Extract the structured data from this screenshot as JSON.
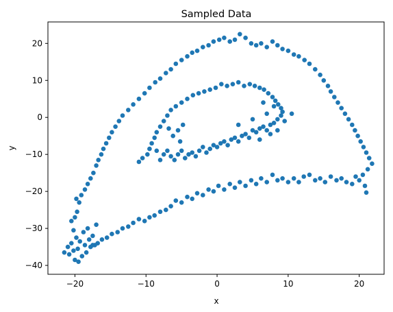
{
  "chart_data": {
    "type": "scatter",
    "title": "Sampled Data",
    "xlabel": "x",
    "ylabel": "y",
    "xlim": [
      -23.8,
      23.5
    ],
    "ylim": [
      -42.4,
      25.8
    ],
    "xticks": [
      -20,
      -10,
      0,
      10,
      20
    ],
    "yticks": [
      -40,
      -30,
      -20,
      -10,
      0,
      10,
      20
    ],
    "grid": false,
    "marker_color": "#1f77b4",
    "series": [
      {
        "name": "",
        "points": [
          [
            -21.5,
            -36.5
          ],
          [
            -21.0,
            -35.0
          ],
          [
            -20.8,
            -37.0
          ],
          [
            -20.5,
            -34.0
          ],
          [
            -20.2,
            -36.0
          ],
          [
            -20.0,
            -38.5
          ],
          [
            -19.8,
            -32.5
          ],
          [
            -19.6,
            -35.5
          ],
          [
            -19.5,
            -39.0
          ],
          [
            -19.3,
            -33.5
          ],
          [
            -19.0,
            -37.5
          ],
          [
            -18.8,
            -31.0
          ],
          [
            -18.6,
            -34.5
          ],
          [
            -18.4,
            -36.5
          ],
          [
            -18.2,
            -30.0
          ],
          [
            -18.0,
            -33.0
          ],
          [
            -17.8,
            -35.0
          ],
          [
            -17.5,
            -32.0
          ],
          [
            -17.2,
            -34.5
          ],
          [
            -17.0,
            -29.0
          ],
          [
            -20.2,
            -30.5
          ],
          [
            -20.5,
            -28.0
          ],
          [
            -20.0,
            -27.0
          ],
          [
            -19.7,
            -25.5
          ],
          [
            -19.4,
            -23.0
          ],
          [
            -19.8,
            -22.0
          ],
          [
            -19.1,
            -21.0
          ],
          [
            -18.6,
            -19.5
          ],
          [
            -18.2,
            -18.0
          ],
          [
            -17.8,
            -16.5
          ],
          [
            -17.4,
            -15.0
          ],
          [
            -17.0,
            -13.0
          ],
          [
            -16.7,
            -11.5
          ],
          [
            -16.3,
            -10.0
          ],
          [
            -16.0,
            -8.5
          ],
          [
            -15.6,
            -7.0
          ],
          [
            -15.2,
            -5.5
          ],
          [
            -14.8,
            -4.0
          ],
          [
            -14.3,
            -2.5
          ],
          [
            -13.8,
            -1.0
          ],
          [
            -13.3,
            0.5
          ],
          [
            -12.5,
            2.0
          ],
          [
            -11.8,
            3.5
          ],
          [
            -11.0,
            5.0
          ],
          [
            -10.2,
            6.5
          ],
          [
            -9.5,
            8.0
          ],
          [
            -8.7,
            9.5
          ],
          [
            -8.0,
            10.5
          ],
          [
            -7.2,
            12.0
          ],
          [
            -6.5,
            13.0
          ],
          [
            -5.8,
            14.5
          ],
          [
            -5.0,
            15.5
          ],
          [
            -4.2,
            16.5
          ],
          [
            -3.5,
            17.5
          ],
          [
            -2.8,
            18.0
          ],
          [
            -2.0,
            19.0
          ],
          [
            -1.2,
            19.5
          ],
          [
            -0.5,
            20.5
          ],
          [
            0.3,
            21.0
          ],
          [
            1.0,
            21.5
          ],
          [
            1.8,
            20.5
          ],
          [
            2.5,
            21.0
          ],
          [
            3.2,
            22.5
          ],
          [
            4.0,
            21.5
          ],
          [
            4.8,
            20.0
          ],
          [
            5.5,
            19.5
          ],
          [
            6.2,
            20.0
          ],
          [
            7.0,
            19.0
          ],
          [
            7.8,
            20.5
          ],
          [
            8.5,
            19.5
          ],
          [
            9.2,
            18.5
          ],
          [
            10.0,
            18.0
          ],
          [
            10.8,
            17.0
          ],
          [
            11.5,
            16.5
          ],
          [
            12.3,
            15.5
          ],
          [
            13.0,
            14.5
          ],
          [
            13.8,
            13.0
          ],
          [
            14.5,
            11.5
          ],
          [
            15.0,
            10.0
          ],
          [
            15.6,
            8.5
          ],
          [
            16.0,
            7.0
          ],
          [
            16.5,
            5.5
          ],
          [
            17.0,
            4.0
          ],
          [
            17.5,
            2.5
          ],
          [
            18.0,
            1.0
          ],
          [
            18.5,
            -0.5
          ],
          [
            19.0,
            -2.0
          ],
          [
            19.4,
            -3.5
          ],
          [
            19.8,
            -5.0
          ],
          [
            20.2,
            -6.5
          ],
          [
            20.6,
            -8.0
          ],
          [
            21.0,
            -9.5
          ],
          [
            21.4,
            -11.0
          ],
          [
            21.8,
            -12.5
          ],
          [
            21.2,
            -14.0
          ],
          [
            20.5,
            -15.5
          ],
          [
            20.0,
            -17.0
          ],
          [
            20.8,
            -18.5
          ],
          [
            19.5,
            -16.0
          ],
          [
            21.0,
            -20.3
          ],
          [
            19.0,
            -18.0
          ],
          [
            18.2,
            -17.5
          ],
          [
            17.5,
            -16.5
          ],
          [
            16.8,
            -17.0
          ],
          [
            16.0,
            -16.0
          ],
          [
            15.2,
            -17.5
          ],
          [
            14.5,
            -16.5
          ],
          [
            13.8,
            -17.0
          ],
          [
            13.0,
            -15.5
          ],
          [
            12.2,
            -16.0
          ],
          [
            11.5,
            -17.5
          ],
          [
            10.8,
            -16.5
          ],
          [
            10.0,
            -17.5
          ],
          [
            9.2,
            -16.5
          ],
          [
            8.5,
            -17.0
          ],
          [
            7.8,
            -15.5
          ],
          [
            7.0,
            -17.5
          ],
          [
            6.2,
            -16.5
          ],
          [
            5.5,
            -18.0
          ],
          [
            4.8,
            -17.0
          ],
          [
            4.0,
            -18.5
          ],
          [
            3.2,
            -17.5
          ],
          [
            2.5,
            -19.0
          ],
          [
            1.8,
            -18.0
          ],
          [
            1.0,
            -19.5
          ],
          [
            0.2,
            -18.5
          ],
          [
            -0.5,
            -20.0
          ],
          [
            -1.2,
            -19.5
          ],
          [
            -2.0,
            -21.0
          ],
          [
            -2.8,
            -20.5
          ],
          [
            -3.5,
            -22.0
          ],
          [
            -4.2,
            -21.5
          ],
          [
            -5.0,
            -23.0
          ],
          [
            -5.8,
            -22.5
          ],
          [
            -6.5,
            -24.0
          ],
          [
            -7.2,
            -25.0
          ],
          [
            -8.0,
            -25.5
          ],
          [
            -8.8,
            -26.5
          ],
          [
            -9.5,
            -27.0
          ],
          [
            -10.2,
            -28.0
          ],
          [
            -11.0,
            -27.5
          ],
          [
            -11.8,
            -28.5
          ],
          [
            -12.5,
            -29.5
          ],
          [
            -13.3,
            -30.0
          ],
          [
            -14.0,
            -31.0
          ],
          [
            -14.8,
            -31.5
          ],
          [
            -15.5,
            -32.5
          ],
          [
            -16.2,
            -33.0
          ],
          [
            -16.8,
            -34.0
          ],
          [
            -17.5,
            -34.5
          ],
          [
            -7.5,
            -10.0
          ],
          [
            -7.0,
            -9.0
          ],
          [
            -6.5,
            -10.5
          ],
          [
            -6.0,
            -11.5
          ],
          [
            -5.5,
            -10.0
          ],
          [
            -5.0,
            -9.0
          ],
          [
            -4.5,
            -11.0
          ],
          [
            -4.0,
            -10.0
          ],
          [
            -3.5,
            -9.5
          ],
          [
            -3.0,
            -10.5
          ],
          [
            -2.5,
            -9.0
          ],
          [
            -2.0,
            -8.0
          ],
          [
            -1.5,
            -9.5
          ],
          [
            -1.0,
            -8.5
          ],
          [
            -0.5,
            -7.5
          ],
          [
            0.0,
            -8.0
          ],
          [
            0.5,
            -7.0
          ],
          [
            1.0,
            -6.5
          ],
          [
            1.5,
            -7.5
          ],
          [
            2.0,
            -6.0
          ],
          [
            2.5,
            -5.5
          ],
          [
            3.0,
            -6.5
          ],
          [
            3.5,
            -5.0
          ],
          [
            4.0,
            -4.5
          ],
          [
            4.5,
            -5.5
          ],
          [
            5.0,
            -3.5
          ],
          [
            5.5,
            -4.0
          ],
          [
            6.0,
            -3.0
          ],
          [
            6.5,
            -2.5
          ],
          [
            7.0,
            -3.5
          ],
          [
            7.5,
            -2.0
          ],
          [
            8.0,
            -1.5
          ],
          [
            8.5,
            -0.5
          ],
          [
            9.0,
            0.5
          ],
          [
            9.2,
            1.5
          ],
          [
            9.0,
            2.5
          ],
          [
            8.6,
            3.5
          ],
          [
            8.2,
            4.5
          ],
          [
            7.8,
            5.5
          ],
          [
            7.2,
            6.5
          ],
          [
            6.6,
            7.5
          ],
          [
            6.0,
            8.0
          ],
          [
            5.3,
            8.5
          ],
          [
            4.6,
            9.0
          ],
          [
            3.8,
            8.5
          ],
          [
            3.0,
            9.5
          ],
          [
            2.2,
            9.0
          ],
          [
            1.4,
            8.5
          ],
          [
            0.6,
            9.0
          ],
          [
            -0.2,
            8.0
          ],
          [
            -1.0,
            7.5
          ],
          [
            -1.8,
            7.0
          ],
          [
            -2.6,
            6.5
          ],
          [
            -3.4,
            6.0
          ],
          [
            -4.2,
            5.0
          ],
          [
            -5.0,
            4.0
          ],
          [
            -5.8,
            3.0
          ],
          [
            -6.5,
            2.0
          ],
          [
            -7.0,
            0.5
          ],
          [
            -7.5,
            -1.0
          ],
          [
            -8.0,
            -2.5
          ],
          [
            -8.5,
            -4.0
          ],
          [
            -8.8,
            -5.5
          ],
          [
            -9.2,
            -7.0
          ],
          [
            -9.5,
            -8.5
          ],
          [
            -9.8,
            -10.0
          ],
          [
            -10.5,
            -11.0
          ],
          [
            -11.0,
            -12.0
          ],
          [
            -8.5,
            -9.0
          ],
          [
            -8.0,
            -11.5
          ],
          [
            -5.5,
            -3.5
          ],
          [
            -6.2,
            -5.0
          ],
          [
            -4.8,
            -2.0
          ],
          [
            -6.8,
            -3.0
          ],
          [
            -5.2,
            -6.5
          ],
          [
            3.0,
            -2.0
          ],
          [
            5.0,
            -0.5
          ],
          [
            6.0,
            -6.0
          ],
          [
            7.5,
            -4.5
          ],
          [
            8.5,
            -3.5
          ],
          [
            9.5,
            -1.0
          ],
          [
            10.5,
            1.0
          ],
          [
            7.0,
            1.0
          ],
          [
            8.0,
            3.0
          ],
          [
            6.5,
            4.0
          ]
        ]
      }
    ]
  }
}
